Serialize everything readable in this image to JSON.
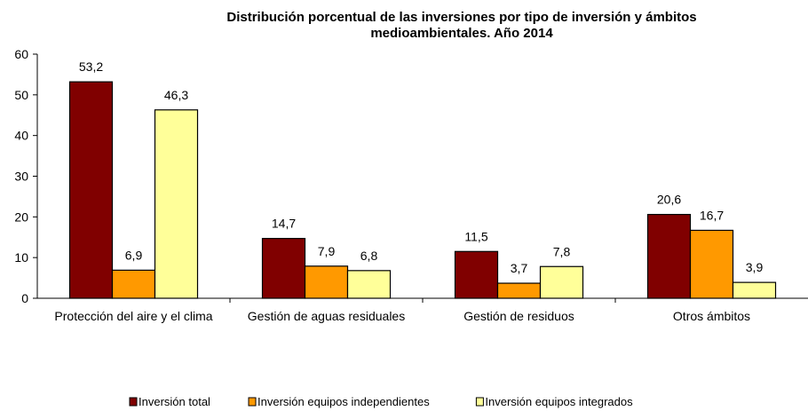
{
  "chart_data": {
    "type": "bar",
    "title": [
      "Distribución porcentual de las inversiones por tipo de inversión y ámbitos",
      "medioambientales. Año 2014"
    ],
    "categories": [
      "Protección del aire y el clima",
      "Gestión de aguas residuales",
      "Gestión de residuos",
      "Otros ámbitos"
    ],
    "series": [
      {
        "name": "Inversión total",
        "color": "#800000",
        "values": [
          53.2,
          14.7,
          11.5,
          20.6
        ],
        "value_labels": [
          "53,2",
          "14,7",
          "11,5",
          "20,6"
        ]
      },
      {
        "name": "Inversión equipos independientes",
        "color": "#ff9900",
        "values": [
          6.9,
          7.9,
          3.7,
          16.7
        ],
        "value_labels": [
          "6,9",
          "7,9",
          "3,7",
          "16,7"
        ]
      },
      {
        "name": "Inversión equipos integrados",
        "color": "#ffff99",
        "values": [
          46.3,
          6.8,
          7.8,
          3.9
        ],
        "value_labels": [
          "46,3",
          "6,8",
          "7,8",
          "3,9"
        ]
      }
    ],
    "ylim": [
      0,
      60
    ],
    "yticks": [
      0,
      10,
      20,
      30,
      40,
      50,
      60
    ],
    "grid": false,
    "legend": "bottom"
  }
}
